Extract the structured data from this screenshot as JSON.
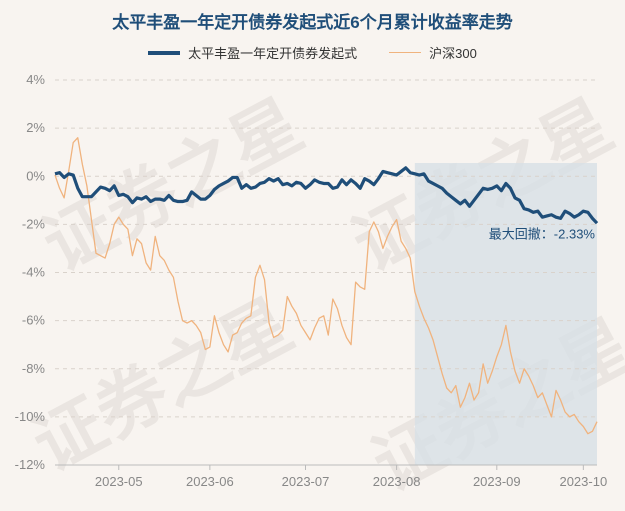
{
  "chart_data": {
    "type": "line",
    "title": "太平丰盈一年定开债券发起式近6个月累计收益率走势",
    "xlabel": "",
    "ylabel": "",
    "ylim": [
      -12,
      4
    ],
    "yticks": [
      4,
      2,
      0,
      -2,
      -4,
      -6,
      -8,
      -10,
      -12
    ],
    "ytick_labels": [
      "4%",
      "2%",
      "0%",
      "-2%",
      "-4%",
      "-6%",
      "-8%",
      "-10%",
      "-12%"
    ],
    "xtick_labels": [
      "2023-05",
      "2023-06",
      "2023-07",
      "2023-08",
      "2023-09",
      "2023-10"
    ],
    "xtick_index": [
      14,
      34,
      55,
      75,
      97,
      116
    ],
    "legend_position": "top-center",
    "grid": "horizontal-dashed",
    "shaded_index_range": [
      79,
      119
    ],
    "annotation": {
      "label": "最大回撤：",
      "value": "-2.33%",
      "index": 119,
      "y": -2.33
    },
    "series": [
      {
        "name": "太平丰盈一年定开债券发起式",
        "color": "#1f4e79",
        "values": [
          0.1,
          0.15,
          -0.05,
          0.1,
          0.05,
          -0.5,
          -0.85,
          -0.85,
          -0.85,
          -0.65,
          -0.45,
          -0.5,
          -0.6,
          -0.4,
          -0.8,
          -0.75,
          -0.85,
          -1.1,
          -0.9,
          -0.95,
          -0.85,
          -1.05,
          -0.95,
          -0.95,
          -1.0,
          -0.8,
          -1.0,
          -1.05,
          -1.05,
          -1.0,
          -0.65,
          -0.8,
          -0.95,
          -0.95,
          -0.8,
          -0.55,
          -0.4,
          -0.3,
          -0.2,
          -0.05,
          -0.05,
          -0.5,
          -0.35,
          -0.5,
          -0.45,
          -0.3,
          -0.25,
          -0.1,
          -0.2,
          -0.1,
          -0.35,
          -0.3,
          -0.4,
          -0.25,
          -0.3,
          -0.5,
          -0.35,
          -0.15,
          -0.25,
          -0.3,
          -0.3,
          -0.5,
          -0.45,
          -0.15,
          -0.35,
          -0.15,
          -0.3,
          -0.5,
          -0.1,
          -0.2,
          -0.35,
          -0.1,
          0.2,
          0.15,
          0.1,
          0.05,
          0.2,
          0.35,
          0.15,
          0.1,
          0.05,
          0.1,
          -0.2,
          -0.3,
          -0.4,
          -0.5,
          -0.7,
          -0.85,
          -1.0,
          -1.15,
          -1.0,
          -1.25,
          -1.0,
          -0.75,
          -0.5,
          -0.55,
          -0.5,
          -0.4,
          -0.6,
          -0.3,
          -0.5,
          -0.9,
          -1.0,
          -1.35,
          -1.4,
          -1.5,
          -1.45,
          -1.7,
          -1.65,
          -1.6,
          -1.7,
          -1.75,
          -1.45,
          -1.55,
          -1.7,
          -1.6,
          -1.45,
          -1.5,
          -1.75,
          -1.95
        ]
      },
      {
        "name": "沪深300",
        "color": "#f0b37e",
        "values": [
          0.05,
          -0.5,
          -0.9,
          0.2,
          1.4,
          1.6,
          0.5,
          -0.4,
          -1.8,
          -3.2,
          -3.3,
          -3.4,
          -2.8,
          -2.0,
          -1.7,
          -2.0,
          -2.2,
          -3.3,
          -2.6,
          -2.8,
          -3.6,
          -3.9,
          -2.5,
          -3.3,
          -3.5,
          -3.9,
          -4.2,
          -5.2,
          -6.0,
          -6.1,
          -6.0,
          -6.2,
          -6.5,
          -7.2,
          -7.1,
          -5.8,
          -6.5,
          -7.0,
          -7.3,
          -6.6,
          -6.5,
          -6.1,
          -5.9,
          -5.8,
          -4.2,
          -3.7,
          -4.3,
          -6.1,
          -6.7,
          -6.6,
          -6.4,
          -5.0,
          -5.4,
          -5.7,
          -6.2,
          -6.5,
          -6.8,
          -6.3,
          -5.9,
          -5.8,
          -6.6,
          -5.1,
          -5.5,
          -6.2,
          -6.7,
          -7.0,
          -4.4,
          -4.6,
          -4.7,
          -2.3,
          -1.9,
          -2.3,
          -3.0,
          -2.5,
          -2.1,
          -1.8,
          -2.7,
          -3.0,
          -3.4,
          -4.8,
          -5.4,
          -5.9,
          -6.3,
          -6.8,
          -7.5,
          -8.2,
          -8.8,
          -9.0,
          -8.7,
          -9.6,
          -9.2,
          -8.6,
          -9.3,
          -9.0,
          -7.8,
          -8.6,
          -8.1,
          -7.5,
          -7.0,
          -6.2,
          -7.3,
          -8.1,
          -8.6,
          -8.0,
          -8.3,
          -8.7,
          -9.2,
          -9.0,
          -9.5,
          -10.0,
          -8.9,
          -9.3,
          -9.8,
          -10.0,
          -9.9,
          -10.2,
          -10.4,
          -10.7,
          -10.6,
          -10.2
        ]
      }
    ]
  },
  "watermark_text": "证券之星"
}
